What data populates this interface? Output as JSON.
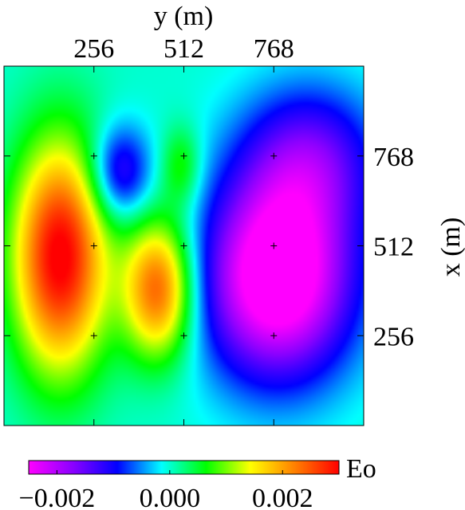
{
  "chart_data": {
    "type": "heatmap",
    "xlabel": "y (m)",
    "ylabel": "x (m)",
    "x_axis_position": "top",
    "y_axis_position": "right",
    "x_ticks": [
      256,
      512,
      768
    ],
    "y_ticks": [
      256,
      512,
      768
    ],
    "xlim": [
      0,
      1024
    ],
    "ylim": [
      0,
      1024
    ],
    "station_markers": [
      {
        "x": 256,
        "y": 768
      },
      {
        "x": 512,
        "y": 768
      },
      {
        "x": 768,
        "y": 768
      },
      {
        "x": 256,
        "y": 512
      },
      {
        "x": 512,
        "y": 512
      },
      {
        "x": 768,
        "y": 512
      },
      {
        "x": 256,
        "y": 256
      },
      {
        "x": 512,
        "y": 256
      },
      {
        "x": 768,
        "y": 256
      }
    ],
    "field_anomalies": [
      {
        "name": "west-high",
        "x": 160,
        "y": 480,
        "sx": 95,
        "sy": 230,
        "amp": 0.0031
      },
      {
        "name": "center-high",
        "x": 440,
        "y": 390,
        "sx": 70,
        "sy": 140,
        "amp": 0.0025
      },
      {
        "name": "center-high-upper",
        "x": 505,
        "y": 740,
        "sx": 40,
        "sy": 80,
        "amp": 0.0008
      },
      {
        "name": "north-cyan-low",
        "x": 330,
        "y": 720,
        "sx": 60,
        "sy": 95,
        "amp": -0.0014
      },
      {
        "name": "east-low",
        "x": 780,
        "y": 420,
        "sx": 150,
        "sy": 200,
        "amp": -0.0031
      },
      {
        "name": "east-low-north",
        "x": 870,
        "y": 760,
        "sx": 140,
        "sy": 150,
        "amp": -0.0014
      }
    ],
    "colorbar": {
      "label": "Eo",
      "min": -0.0025,
      "max": 0.003,
      "ticks": [
        -0.002,
        0.0,
        0.002
      ],
      "tick_labels": [
        "−0.002",
        "0.000",
        "0.002"
      ],
      "colormap": [
        "#ff00ff",
        "#8a00ff",
        "#0000ff",
        "#00ffff",
        "#00ff00",
        "#ffff00",
        "#ff8000",
        "#ff0000"
      ]
    }
  }
}
